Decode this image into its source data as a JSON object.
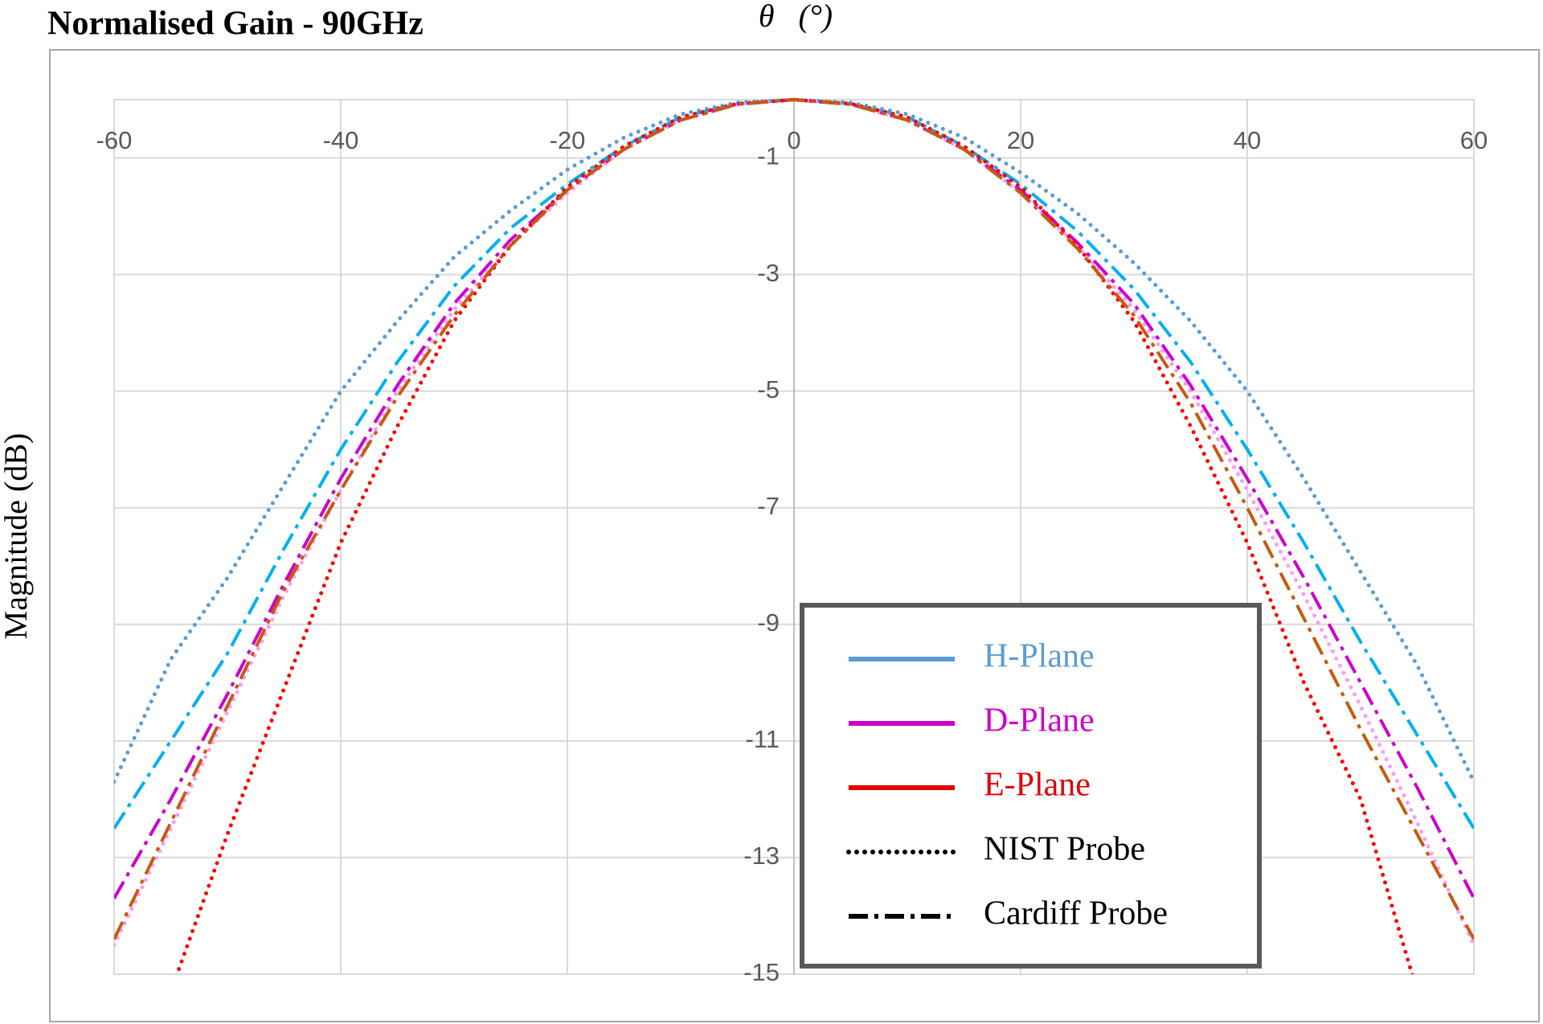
{
  "chart_data": {
    "type": "line",
    "title": "Normalised Gain - 90GHz",
    "x_label": "θ   (°)",
    "y_label": "Magnitude (dB)",
    "x": [
      -60,
      -55,
      -50,
      -45,
      -40,
      -35,
      -30,
      -25,
      -20,
      -15,
      -10,
      -5,
      0,
      5,
      10,
      15,
      20,
      25,
      30,
      35,
      40,
      45,
      50,
      55,
      60
    ],
    "xlim": [
      -60,
      60
    ],
    "xticks": [
      -60,
      -40,
      -20,
      0,
      20,
      40,
      60
    ],
    "ylim": [
      -15,
      0
    ],
    "yticks": [
      -1,
      -3,
      -5,
      -7,
      -9,
      -11,
      -13,
      -15
    ],
    "grid": true,
    "legend": "lower-right",
    "probes": [
      {
        "name": "NIST Probe",
        "dash": "dotted"
      },
      {
        "name": "Cardiff Probe",
        "dash": "dashdot"
      }
    ],
    "planes": [
      {
        "name": "H-Plane",
        "color": "#5b9bd5",
        "series": [
          {
            "color": "#5b9bd5",
            "values": [
              -11.7,
              -9.6,
              -8.2,
              -6.6,
              -5.0,
              -3.8,
              -2.7,
              -1.9,
              -1.2,
              -0.65,
              -0.25,
              -0.05,
              0,
              -0.05,
              -0.25,
              -0.65,
              -1.25,
              -1.95,
              -2.8,
              -3.8,
              -5.0,
              -6.5,
              -8.1,
              -9.7,
              -11.7
            ]
          },
          {
            "color": "#00b0f0",
            "values": [
              -12.5,
              -11.0,
              -9.5,
              -7.7,
              -6.0,
              -4.5,
              -3.2,
              -2.2,
              -1.45,
              -0.8,
              -0.3,
              -0.07,
              0,
              -0.07,
              -0.3,
              -0.8,
              -1.45,
              -2.25,
              -3.25,
              -4.5,
              -6.0,
              -7.6,
              -9.3,
              -10.9,
              -12.5
            ]
          }
        ]
      },
      {
        "name": "D-Plane",
        "color": "#cc00cc",
        "series": [
          {
            "color": "#ff99ff",
            "values": [
              -14.5,
              -12.5,
              -10.5,
              -8.5,
              -6.7,
              -5.0,
              -3.6,
              -2.5,
              -1.6,
              -0.85,
              -0.35,
              -0.08,
              0,
              -0.08,
              -0.35,
              -0.85,
              -1.6,
              -2.5,
              -3.6,
              -5.0,
              -6.7,
              -8.5,
              -10.4,
              -12.4,
              -14.5
            ]
          },
          {
            "color": "#cc00cc",
            "values": [
              -13.7,
              -12.0,
              -10.2,
              -8.3,
              -6.5,
              -4.9,
              -3.5,
              -2.4,
              -1.55,
              -0.85,
              -0.35,
              -0.08,
              0,
              -0.08,
              -0.35,
              -0.85,
              -1.55,
              -2.45,
              -3.5,
              -4.9,
              -6.5,
              -8.2,
              -10.0,
              -11.8,
              -13.7
            ]
          }
        ]
      },
      {
        "name": "E-Plane",
        "color": "#e00000",
        "series": [
          {
            "color": "#ff0000",
            "values": [
              null,
              -15.3,
              -12.6,
              -10.1,
              -7.6,
              -5.6,
              -3.8,
              -2.5,
              -1.5,
              -0.8,
              -0.3,
              -0.07,
              0,
              -0.07,
              -0.3,
              -0.8,
              -1.5,
              -2.5,
              -3.8,
              -5.6,
              -7.6,
              -10.0,
              -12.0,
              -15.3,
              null
            ]
          },
          {
            "color": "#c55a11",
            "values": [
              -14.4,
              -12.4,
              -10.4,
              -8.4,
              -6.7,
              -5.1,
              -3.7,
              -2.5,
              -1.55,
              -0.85,
              -0.35,
              -0.08,
              0,
              -0.08,
              -0.35,
              -0.85,
              -1.6,
              -2.55,
              -3.7,
              -5.2,
              -7.0,
              -8.9,
              -10.8,
              -12.6,
              -14.4
            ]
          }
        ]
      }
    ]
  }
}
